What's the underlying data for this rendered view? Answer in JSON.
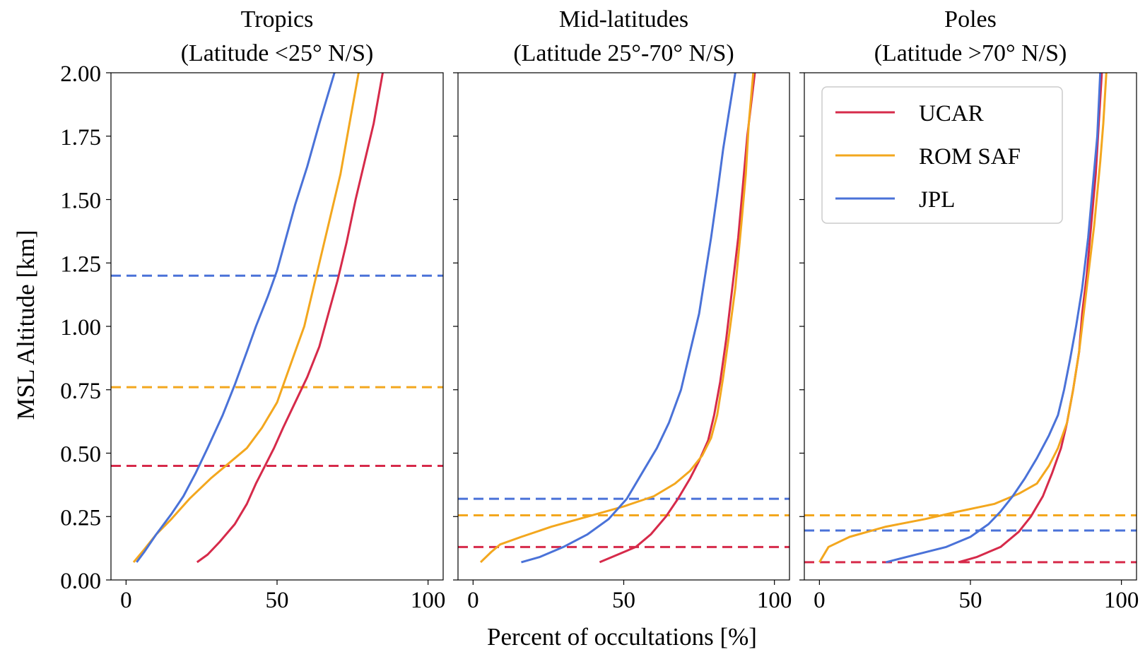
{
  "chart_data": {
    "type": "line",
    "ylabel": "MSL Altitude [km]",
    "xlabel": "Percent of occultations [%]",
    "ylim": [
      0,
      2.0
    ],
    "xlim": [
      -5,
      105
    ],
    "yticks": [
      "0.00",
      "0.25",
      "0.50",
      "0.75",
      "1.00",
      "1.25",
      "1.50",
      "1.75",
      "2.00"
    ],
    "xticks": [
      "0",
      "50",
      "100"
    ],
    "legend": {
      "location": "upper right (Poles panel)",
      "entries": [
        "UCAR",
        "ROM SAF",
        "JPL"
      ]
    },
    "colors": {
      "UCAR": "#d62a4a",
      "ROM SAF": "#f3a71e",
      "JPL": "#4a72d8"
    },
    "panels": [
      {
        "title_line1": "Tropics",
        "title_line2": "(Latitude <25° N/S)",
        "series": [
          {
            "name": "UCAR",
            "points": [
              [
                23.5,
                0.07
              ],
              [
                27,
                0.1
              ],
              [
                31,
                0.15
              ],
              [
                36,
                0.22
              ],
              [
                40,
                0.3
              ],
              [
                43,
                0.38
              ],
              [
                46,
                0.45
              ],
              [
                49,
                0.52
              ],
              [
                52,
                0.6
              ],
              [
                56,
                0.7
              ],
              [
                60,
                0.8
              ],
              [
                64,
                0.92
              ],
              [
                67,
                1.05
              ],
              [
                70,
                1.18
              ],
              [
                73,
                1.33
              ],
              [
                76,
                1.5
              ],
              [
                79,
                1.65
              ],
              [
                82,
                1.8
              ],
              [
                85,
                2.0
              ]
            ]
          },
          {
            "name": "ROM SAF",
            "points": [
              [
                2.5,
                0.07
              ],
              [
                6,
                0.12
              ],
              [
                10,
                0.18
              ],
              [
                15,
                0.24
              ],
              [
                21,
                0.32
              ],
              [
                28,
                0.4
              ],
              [
                35,
                0.47
              ],
              [
                40,
                0.52
              ],
              [
                45,
                0.6
              ],
              [
                50,
                0.7
              ],
              [
                53,
                0.8
              ],
              [
                56,
                0.9
              ],
              [
                59,
                1.0
              ],
              [
                62,
                1.15
              ],
              [
                65,
                1.3
              ],
              [
                68,
                1.45
              ],
              [
                71,
                1.6
              ],
              [
                74,
                1.8
              ],
              [
                77,
                2.0
              ]
            ]
          },
          {
            "name": "JPL",
            "points": [
              [
                3.5,
                0.07
              ],
              [
                6,
                0.11
              ],
              [
                10,
                0.18
              ],
              [
                15,
                0.26
              ],
              [
                19,
                0.33
              ],
              [
                23,
                0.42
              ],
              [
                27,
                0.52
              ],
              [
                32,
                0.65
              ],
              [
                36,
                0.77
              ],
              [
                40,
                0.9
              ],
              [
                43,
                1.0
              ],
              [
                47,
                1.12
              ],
              [
                50,
                1.22
              ],
              [
                53,
                1.35
              ],
              [
                56,
                1.48
              ],
              [
                60,
                1.63
              ],
              [
                64,
                1.8
              ],
              [
                69,
                2.0
              ]
            ]
          }
        ],
        "thresholds": {
          "UCAR": 0.45,
          "ROM SAF": 0.76,
          "JPL": 1.2
        }
      },
      {
        "title_line1": "Mid-latitudes",
        "title_line2": "(Latitude 25°-70° N/S)",
        "series": [
          {
            "name": "UCAR",
            "points": [
              [
                42,
                0.07
              ],
              [
                48,
                0.1
              ],
              [
                54,
                0.13
              ],
              [
                59,
                0.18
              ],
              [
                64,
                0.25
              ],
              [
                68,
                0.32
              ],
              [
                72,
                0.4
              ],
              [
                75,
                0.47
              ],
              [
                78,
                0.55
              ],
              [
                80,
                0.65
              ],
              [
                82,
                0.78
              ],
              [
                84,
                0.95
              ],
              [
                86,
                1.15
              ],
              [
                88,
                1.35
              ],
              [
                89.5,
                1.55
              ],
              [
                91,
                1.75
              ],
              [
                92.5,
                1.9
              ],
              [
                93.5,
                2.0
              ]
            ]
          },
          {
            "name": "ROM SAF",
            "points": [
              [
                2.5,
                0.07
              ],
              [
                6,
                0.11
              ],
              [
                9,
                0.14
              ],
              [
                16,
                0.17
              ],
              [
                26,
                0.21
              ],
              [
                38,
                0.25
              ],
              [
                50,
                0.29
              ],
              [
                60,
                0.33
              ],
              [
                67,
                0.38
              ],
              [
                72,
                0.43
              ],
              [
                76,
                0.49
              ],
              [
                79,
                0.56
              ],
              [
                81,
                0.65
              ],
              [
                83,
                0.8
              ],
              [
                85,
                0.97
              ],
              [
                87,
                1.15
              ],
              [
                89,
                1.4
              ],
              [
                90.5,
                1.6
              ],
              [
                91.5,
                1.8
              ],
              [
                93,
                2.0
              ]
            ]
          },
          {
            "name": "JPL",
            "points": [
              [
                16,
                0.07
              ],
              [
                22,
                0.09
              ],
              [
                30,
                0.13
              ],
              [
                38,
                0.18
              ],
              [
                45,
                0.24
              ],
              [
                51,
                0.32
              ],
              [
                56,
                0.42
              ],
              [
                61,
                0.52
              ],
              [
                65,
                0.62
              ],
              [
                69,
                0.75
              ],
              [
                72,
                0.9
              ],
              [
                75,
                1.05
              ],
              [
                77,
                1.2
              ],
              [
                79,
                1.35
              ],
              [
                81,
                1.52
              ],
              [
                83,
                1.7
              ],
              [
                85,
                1.85
              ],
              [
                87,
                2.0
              ]
            ]
          }
        ],
        "thresholds": {
          "UCAR": 0.13,
          "ROM SAF": 0.255,
          "JPL": 0.32
        }
      },
      {
        "title_line1": "Poles",
        "title_line2": "(Latitude >70° N/S)",
        "series": [
          {
            "name": "UCAR",
            "points": [
              [
                46,
                0.07
              ],
              [
                52,
                0.09
              ],
              [
                60,
                0.13
              ],
              [
                66,
                0.19
              ],
              [
                70,
                0.25
              ],
              [
                74,
                0.33
              ],
              [
                77,
                0.42
              ],
              [
                80,
                0.52
              ],
              [
                82,
                0.62
              ],
              [
                84,
                0.75
              ],
              [
                86,
                0.9
              ],
              [
                87,
                1.05
              ],
              [
                88.5,
                1.2
              ],
              [
                90,
                1.4
              ],
              [
                91.5,
                1.6
              ],
              [
                92.5,
                1.8
              ],
              [
                93.5,
                2.0
              ]
            ]
          },
          {
            "name": "ROM SAF",
            "points": [
              [
                0,
                0.07
              ],
              [
                3,
                0.13
              ],
              [
                10,
                0.17
              ],
              [
                22,
                0.21
              ],
              [
                35,
                0.24
              ],
              [
                46,
                0.27
              ],
              [
                58,
                0.3
              ],
              [
                66,
                0.34
              ],
              [
                72,
                0.38
              ],
              [
                76,
                0.45
              ],
              [
                79,
                0.52
              ],
              [
                82,
                0.62
              ],
              [
                84,
                0.75
              ],
              [
                86,
                0.9
              ],
              [
                87.5,
                1.05
              ],
              [
                89,
                1.2
              ],
              [
                91,
                1.4
              ],
              [
                93,
                1.65
              ],
              [
                94,
                1.8
              ],
              [
                95,
                2.0
              ]
            ]
          },
          {
            "name": "JPL",
            "points": [
              [
                22,
                0.07
              ],
              [
                32,
                0.1
              ],
              [
                42,
                0.13
              ],
              [
                50,
                0.17
              ],
              [
                56,
                0.22
              ],
              [
                60,
                0.27
              ],
              [
                64,
                0.33
              ],
              [
                68,
                0.4
              ],
              [
                72,
                0.48
              ],
              [
                76,
                0.57
              ],
              [
                79,
                0.65
              ],
              [
                81,
                0.75
              ],
              [
                83,
                0.87
              ],
              [
                85,
                1.0
              ],
              [
                87,
                1.15
              ],
              [
                89,
                1.35
              ],
              [
                90.5,
                1.55
              ],
              [
                92,
                1.75
              ],
              [
                93,
                2.0
              ]
            ]
          }
        ],
        "thresholds": {
          "UCAR": 0.07,
          "ROM SAF": 0.255,
          "JPL": 0.195
        }
      }
    ]
  }
}
